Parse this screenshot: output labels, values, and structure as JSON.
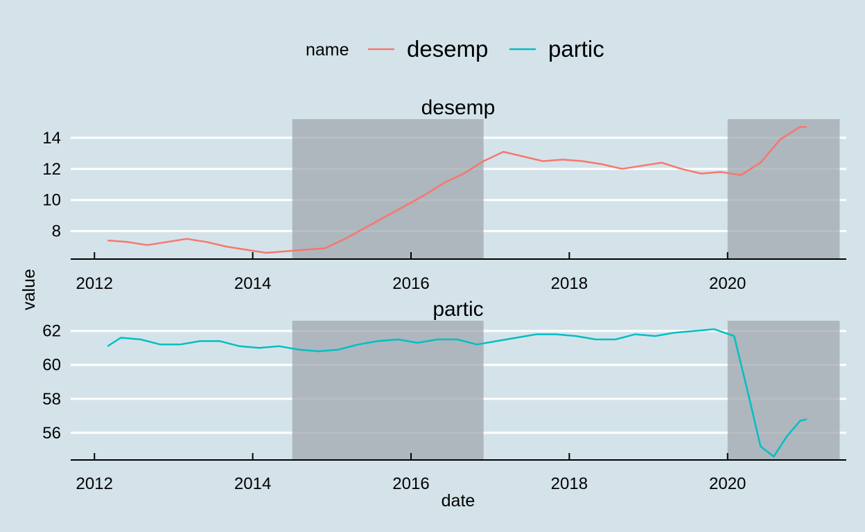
{
  "chart_data": {
    "type": "line",
    "legend": {
      "title": "name",
      "position": "top",
      "entries": [
        "desemp",
        "partic"
      ]
    },
    "xlabel": "date",
    "ylabel": "value",
    "x_ticks": [
      "2012",
      "2014",
      "2016",
      "2018",
      "2020"
    ],
    "x_range": [
      2011.7,
      2021.5
    ],
    "grid": true,
    "colors": {
      "desemp": "#f8766d",
      "partic": "#00bfc4",
      "shade": "#a0a8ae",
      "background": "#d4e3ea",
      "grid": "#ffffff"
    },
    "shaded_periods": [
      {
        "start": "2014-07",
        "end": "2016-12"
      },
      {
        "start": "2020-01",
        "end": "2021-06"
      }
    ],
    "panels": [
      {
        "title": "desemp",
        "series": "desemp",
        "y_ticks": [
          8,
          10,
          12,
          14
        ],
        "ylim": [
          6.2,
          15.2
        ],
        "dates": [
          "2012-03",
          "2012-06",
          "2012-09",
          "2012-12",
          "2013-03",
          "2013-06",
          "2013-09",
          "2013-12",
          "2014-03",
          "2014-06",
          "2014-09",
          "2014-12",
          "2015-03",
          "2015-06",
          "2015-09",
          "2015-12",
          "2016-03",
          "2016-06",
          "2016-09",
          "2016-12",
          "2017-03",
          "2017-06",
          "2017-09",
          "2017-12",
          "2018-03",
          "2018-06",
          "2018-09",
          "2018-12",
          "2019-03",
          "2019-06",
          "2019-09",
          "2019-12",
          "2020-03",
          "2020-06",
          "2020-09",
          "2020-12",
          "2021-01"
        ],
        "values": [
          7.4,
          7.3,
          7.1,
          7.3,
          7.5,
          7.3,
          7.0,
          6.8,
          6.6,
          6.7,
          6.8,
          6.9,
          7.5,
          8.2,
          8.9,
          9.6,
          10.3,
          11.1,
          11.7,
          12.5,
          13.1,
          12.8,
          12.5,
          12.6,
          12.5,
          12.3,
          12.0,
          12.2,
          12.4,
          12.0,
          11.7,
          11.8,
          11.6,
          12.4,
          13.9,
          14.7,
          14.7
        ]
      },
      {
        "title": "partic",
        "series": "partic",
        "y_ticks": [
          56,
          58,
          60,
          62
        ],
        "ylim": [
          54.4,
          62.6
        ],
        "dates": [
          "2012-03",
          "2012-05",
          "2012-08",
          "2012-11",
          "2013-02",
          "2013-05",
          "2013-08",
          "2013-11",
          "2014-02",
          "2014-05",
          "2014-08",
          "2014-11",
          "2015-02",
          "2015-05",
          "2015-08",
          "2015-11",
          "2016-02",
          "2016-05",
          "2016-08",
          "2016-11",
          "2017-02",
          "2017-05",
          "2017-08",
          "2017-11",
          "2018-02",
          "2018-05",
          "2018-08",
          "2018-11",
          "2019-02",
          "2019-05",
          "2019-08",
          "2019-11",
          "2020-02",
          "2020-04",
          "2020-06",
          "2020-08",
          "2020-10",
          "2020-12",
          "2021-01"
        ],
        "values": [
          61.1,
          61.6,
          61.5,
          61.2,
          61.2,
          61.4,
          61.4,
          61.1,
          61.0,
          61.1,
          60.9,
          60.8,
          60.9,
          61.2,
          61.4,
          61.5,
          61.3,
          61.5,
          61.5,
          61.2,
          61.4,
          61.6,
          61.8,
          61.8,
          61.7,
          61.5,
          61.5,
          61.8,
          61.7,
          61.9,
          62.0,
          62.1,
          61.7,
          58.5,
          55.2,
          54.6,
          55.8,
          56.7,
          56.8
        ]
      }
    ]
  }
}
